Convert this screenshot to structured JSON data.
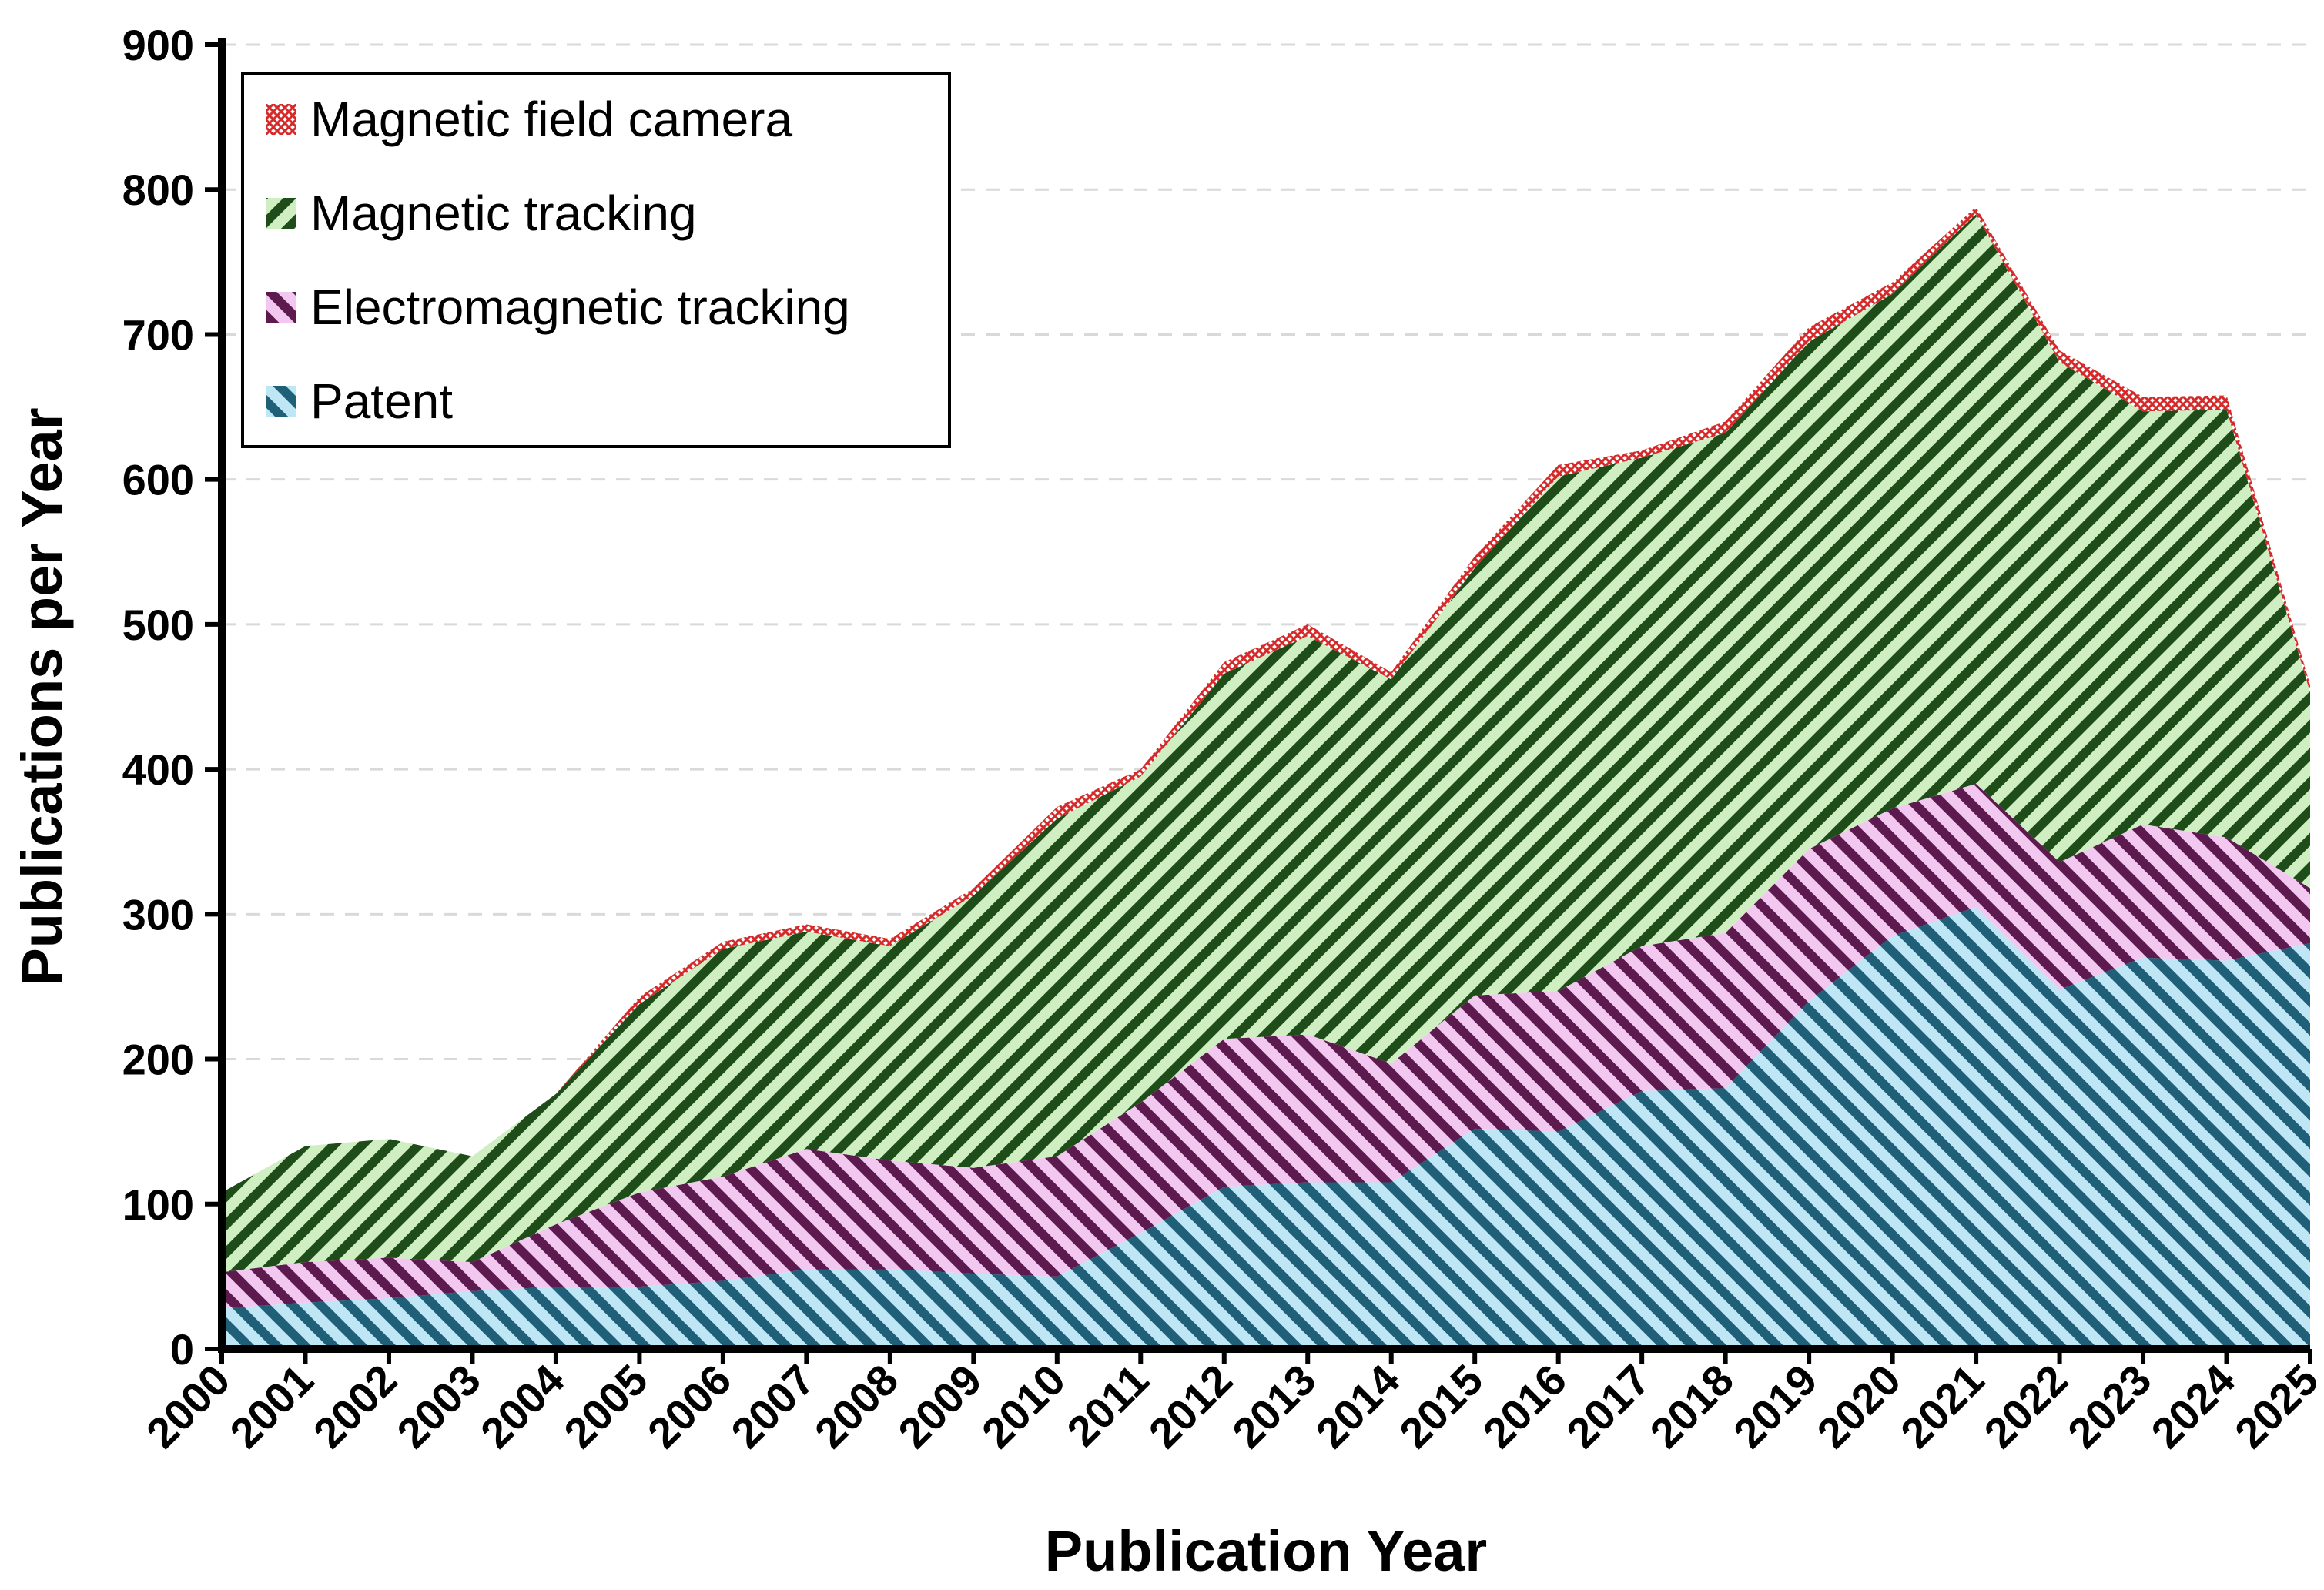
{
  "chart_data": {
    "type": "area",
    "stacked": true,
    "title": "",
    "xlabel": "Publication Year",
    "ylabel": "Publications per Year",
    "x": [
      "2000",
      "2001",
      "2002",
      "2003",
      "2004",
      "2005",
      "2006",
      "2007",
      "2008",
      "2009",
      "2010",
      "2011",
      "2012",
      "2013",
      "2014",
      "2015",
      "2016",
      "2017",
      "2018",
      "2019",
      "2020",
      "2021",
      "2022",
      "2023",
      "2024",
      "2025"
    ],
    "xlim": [
      2000,
      2025
    ],
    "ylim": [
      0,
      900
    ],
    "yticks": [
      "0",
      "100",
      "200",
      "300",
      "400",
      "500",
      "600",
      "700",
      "800",
      "900"
    ],
    "grid": "horizontal dashed",
    "legend_position": "top-left",
    "series": [
      {
        "name": "Patent",
        "color": "#1f5f78",
        "fill_light": "#bfe6f5",
        "values": [
          28,
          32,
          35,
          40,
          43,
          43,
          47,
          55,
          55,
          52,
          50,
          80,
          112,
          115,
          115,
          152,
          150,
          178,
          180,
          240,
          285,
          305,
          248,
          270,
          268,
          280
        ]
      },
      {
        "name": "Electromagnetic tracking",
        "color": "#5c1a4e",
        "fill_light": "#f2c8f0",
        "values": [
          25,
          28,
          28,
          20,
          43,
          65,
          72,
          83,
          75,
          73,
          83,
          90,
          102,
          102,
          82,
          92,
          97,
          100,
          107,
          105,
          88,
          85,
          88,
          92,
          85,
          38
        ]
      },
      {
        "name": "Magnetic tracking",
        "color": "#1f4d1a",
        "fill_light": "#cfeec2",
        "values": [
          55,
          80,
          82,
          73,
          90,
          130,
          157,
          150,
          148,
          188,
          233,
          225,
          252,
          275,
          265,
          295,
          355,
          337,
          345,
          350,
          355,
          393,
          345,
          285,
          295,
          135
        ]
      },
      {
        "name": "Magnetic field camera",
        "color": "#d42a2a",
        "fill_light": "#ffffff",
        "values": [
          0,
          0,
          0,
          0,
          0,
          5,
          5,
          5,
          5,
          5,
          8,
          5,
          8,
          8,
          5,
          8,
          8,
          5,
          8,
          10,
          8,
          5,
          8,
          10,
          10,
          5
        ]
      }
    ],
    "legend_order": [
      "Magnetic field camera",
      "Magnetic tracking",
      "Electromagnetic tracking",
      "Patent"
    ]
  }
}
